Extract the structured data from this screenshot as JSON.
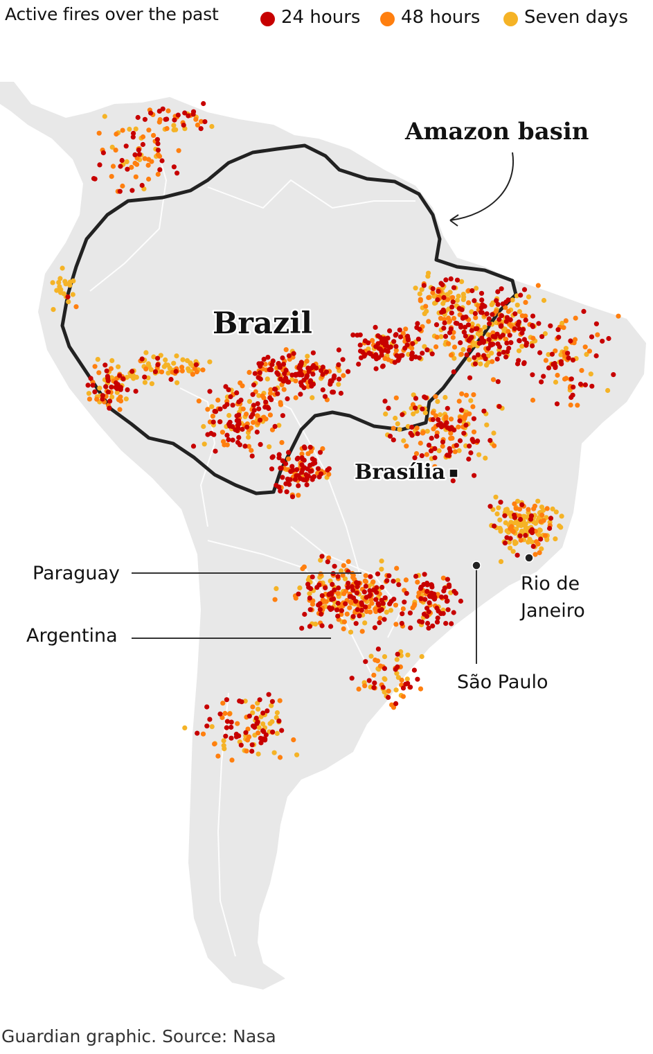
{
  "legend": {
    "title": "Active fires over the past",
    "items": [
      {
        "label": "24 hours",
        "color": "#c70000"
      },
      {
        "label": "48 hours",
        "color": "#ff7f0f"
      },
      {
        "label": "Seven days",
        "color": "#f5b326"
      }
    ]
  },
  "map": {
    "land_color": "#e8e8e8",
    "border_color": "#ffffff",
    "basin_outline_color": "#222222",
    "labels": {
      "amazon_basin": "Amazon basin",
      "brazil": "Brazil",
      "brasilia": "Brasília",
      "paraguay": "Paraguay",
      "argentina": "Argentina",
      "sao_paulo": "São Paulo",
      "rio_line1": "Rio de",
      "rio_line2": "Janeiro"
    }
  },
  "footer": "Guardian graphic. Source: Nasa"
}
